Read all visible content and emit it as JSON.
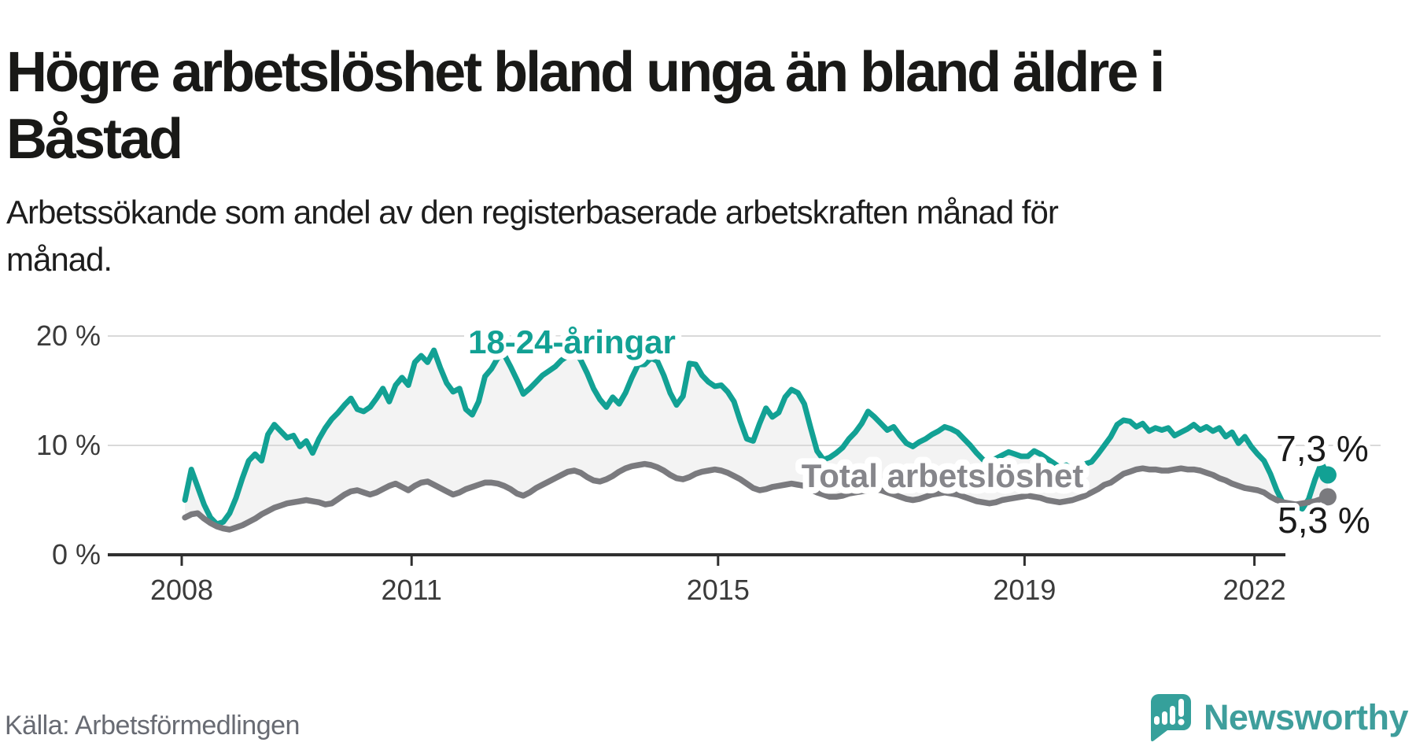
{
  "header": {
    "title": "Högre arbetslöshet bland unga än bland äldre i Båstad",
    "subtitle": "Arbetssökande som andel av den registerbaserade arbetskraften månad för månad."
  },
  "footer": {
    "source": "Källa: Arbetsförmedlingen"
  },
  "logo": {
    "brand": "Newsworthy",
    "icon": "newsworthy-bubble-chart-icon",
    "icon_color": "#35a09b",
    "text_color": "#3f9e9c"
  },
  "chart_data": {
    "type": "line",
    "x_unit": "month",
    "x_start": "2008-01",
    "x_end": "2022-12",
    "x_ticks": [
      2008,
      2011,
      2015,
      2019,
      2022
    ],
    "y_ticks": [
      {
        "label": "0 %",
        "value": 0
      },
      {
        "label": "10 %",
        "value": 10
      },
      {
        "label": "20 %",
        "value": 20
      }
    ],
    "ylim": [
      0,
      21
    ],
    "grid": "horizontal",
    "colors": {
      "grid": "#d9d9d9",
      "axis": "#2f2f2f",
      "tick_label": "#3b3b3b",
      "annotation": "#1b1b1b",
      "fill_between": "#f3f3f3"
    },
    "series": [
      {
        "name": "18-24-åringar",
        "color": "#12a194",
        "label_color": "#12a194",
        "end_label": "7,3 %",
        "end_value": 7.3,
        "values": [
          5.0,
          7.8,
          6.2,
          4.6,
          3.4,
          2.8,
          3.0,
          3.8,
          5.2,
          7.0,
          8.6,
          9.2,
          8.6,
          11.0,
          11.9,
          11.3,
          10.7,
          10.9,
          9.9,
          10.4,
          9.3,
          10.6,
          11.6,
          12.4,
          13.0,
          13.7,
          14.3,
          13.3,
          13.1,
          13.5,
          14.3,
          15.2,
          14.0,
          15.5,
          16.2,
          15.5,
          17.6,
          18.2,
          17.6,
          18.7,
          17.1,
          15.7,
          14.9,
          15.2,
          13.3,
          12.8,
          14.0,
          16.3,
          17.0,
          18.0,
          18.3,
          17.2,
          16.0,
          14.7,
          15.2,
          15.8,
          16.4,
          16.8,
          17.2,
          17.8,
          18.2,
          18.6,
          17.8,
          16.6,
          15.2,
          14.2,
          13.5,
          14.4,
          13.8,
          14.8,
          16.2,
          17.4,
          17.4,
          18.0,
          17.7,
          16.4,
          14.8,
          13.7,
          14.5,
          17.5,
          17.4,
          16.4,
          15.8,
          15.4,
          15.5,
          14.9,
          14.0,
          12.2,
          10.6,
          10.4,
          12.0,
          13.4,
          12.6,
          13.0,
          14.4,
          15.1,
          14.8,
          13.8,
          11.6,
          9.5,
          8.7,
          8.9,
          9.3,
          9.8,
          10.6,
          11.2,
          12.0,
          13.1,
          12.6,
          12.0,
          11.4,
          11.7,
          10.9,
          10.2,
          9.9,
          10.3,
          10.6,
          11.0,
          11.3,
          11.7,
          11.5,
          11.2,
          10.6,
          10.0,
          9.3,
          8.7,
          8.5,
          8.8,
          9.1,
          9.4,
          9.2,
          9.0,
          9.0,
          9.5,
          9.2,
          8.8,
          8.4,
          8.0,
          8.2,
          7.8,
          8.0,
          8.3,
          8.5,
          9.2,
          10.0,
          10.8,
          11.9,
          12.3,
          12.2,
          11.7,
          12.0,
          11.3,
          11.6,
          11.4,
          11.6,
          10.9,
          11.2,
          11.5,
          11.9,
          11.4,
          11.7,
          11.3,
          11.6,
          10.8,
          11.2,
          10.2,
          10.8,
          9.9,
          9.2,
          8.6,
          7.4,
          5.9,
          4.7,
          4.1,
          4.5,
          4.2,
          5.1,
          6.9,
          8.4,
          7.3
        ]
      },
      {
        "name": "Total arbetslöshet",
        "color": "#7a7a7e",
        "label_color": "#86868b",
        "end_label": "5,3 %",
        "end_value": 5.3,
        "values": [
          3.4,
          3.7,
          3.8,
          3.3,
          2.9,
          2.6,
          2.4,
          2.3,
          2.5,
          2.7,
          3.0,
          3.3,
          3.7,
          4.0,
          4.3,
          4.5,
          4.7,
          4.8,
          4.9,
          5.0,
          4.9,
          4.8,
          4.6,
          4.7,
          5.1,
          5.5,
          5.8,
          5.9,
          5.7,
          5.5,
          5.7,
          6.0,
          6.3,
          6.5,
          6.2,
          5.9,
          6.3,
          6.6,
          6.7,
          6.4,
          6.1,
          5.8,
          5.5,
          5.7,
          6.0,
          6.2,
          6.4,
          6.6,
          6.6,
          6.5,
          6.3,
          6.0,
          5.6,
          5.4,
          5.7,
          6.1,
          6.4,
          6.7,
          7.0,
          7.3,
          7.6,
          7.7,
          7.5,
          7.1,
          6.8,
          6.7,
          6.9,
          7.2,
          7.6,
          7.9,
          8.1,
          8.2,
          8.3,
          8.2,
          8.0,
          7.7,
          7.3,
          7.0,
          6.9,
          7.1,
          7.4,
          7.6,
          7.7,
          7.8,
          7.7,
          7.5,
          7.2,
          6.9,
          6.5,
          6.1,
          5.9,
          6.0,
          6.2,
          6.3,
          6.4,
          6.5,
          6.4,
          6.3,
          6.0,
          5.7,
          5.5,
          5.3,
          5.3,
          5.4,
          5.6,
          5.7,
          5.8,
          5.9,
          6.0,
          5.9,
          5.7,
          5.5,
          5.3,
          5.1,
          5.0,
          5.1,
          5.3,
          5.5,
          5.6,
          5.7,
          5.6,
          5.5,
          5.3,
          5.1,
          4.9,
          4.8,
          4.7,
          4.8,
          5.0,
          5.1,
          5.2,
          5.3,
          5.4,
          5.3,
          5.2,
          5.0,
          4.9,
          4.8,
          4.9,
          5.0,
          5.2,
          5.4,
          5.7,
          6.0,
          6.4,
          6.6,
          7.0,
          7.4,
          7.6,
          7.8,
          7.9,
          7.8,
          7.8,
          7.7,
          7.7,
          7.8,
          7.9,
          7.8,
          7.8,
          7.7,
          7.5,
          7.3,
          7.0,
          6.8,
          6.5,
          6.3,
          6.1,
          6.0,
          5.9,
          5.7,
          5.3,
          5.0,
          4.8,
          4.7,
          4.6,
          4.7,
          4.8,
          4.9,
          5.1,
          5.3
        ]
      }
    ]
  }
}
